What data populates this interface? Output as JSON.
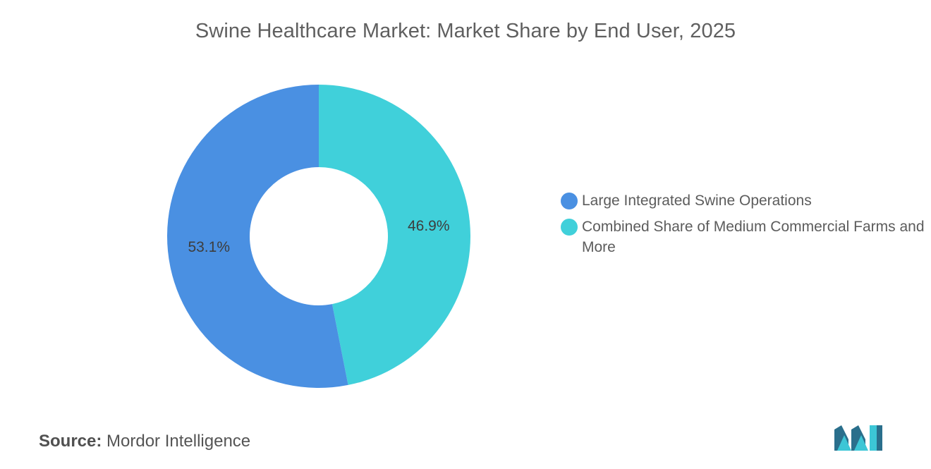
{
  "chart_data": {
    "type": "pie",
    "title": "Swine Healthcare Market: Market Share by End User, 2025",
    "donut": true,
    "slices": [
      {
        "label": "Large Integrated Swine Operations",
        "value": 53.1,
        "display": "53.1%",
        "color": "#4a90e2"
      },
      {
        "label": "Combined Share of Medium Commercial Farms and More",
        "value": 46.9,
        "display": "46.9%",
        "color": "#40d0da"
      }
    ],
    "legend_position": "right"
  },
  "source": {
    "label": "Source:",
    "value": "Mordor Intelligence"
  },
  "logo": {
    "icon": "mordor-intelligence-logo-icon",
    "colors": [
      "#2a6f8c",
      "#3cc6d6"
    ]
  }
}
